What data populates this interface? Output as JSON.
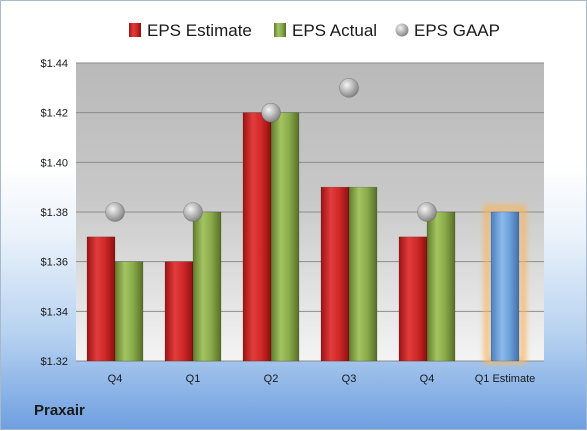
{
  "company": "Praxair",
  "chart_data": {
    "type": "bar",
    "categories": [
      "Q4",
      "Q1",
      "Q2",
      "Q3",
      "Q4",
      "Q1 Estimate"
    ],
    "series": [
      {
        "name": "EPS Estimate",
        "color": "#d42a2a",
        "values": [
          1.37,
          1.36,
          1.42,
          1.39,
          1.37,
          null
        ]
      },
      {
        "name": "EPS Actual",
        "color": "#8fb14e",
        "values": [
          1.36,
          1.38,
          1.42,
          1.39,
          1.38,
          null
        ]
      },
      {
        "name": "EPS GAAP",
        "color": "#a8a8a8",
        "marker": "circle",
        "values": [
          1.38,
          1.38,
          1.42,
          1.43,
          1.38,
          null
        ]
      }
    ],
    "estimate_bar": {
      "category": "Q1 Estimate",
      "value": 1.38,
      "color": "#6ea3dc",
      "glow": "#f5b660"
    },
    "ylim": [
      1.32,
      1.44
    ],
    "yticks": [
      1.32,
      1.34,
      1.36,
      1.38,
      1.4,
      1.42,
      1.44
    ],
    "ytick_labels": [
      "$1.32",
      "$1.34",
      "$1.36",
      "$1.38",
      "$1.40",
      "$1.42",
      "$1.44"
    ],
    "grid": true,
    "legend": "top"
  }
}
